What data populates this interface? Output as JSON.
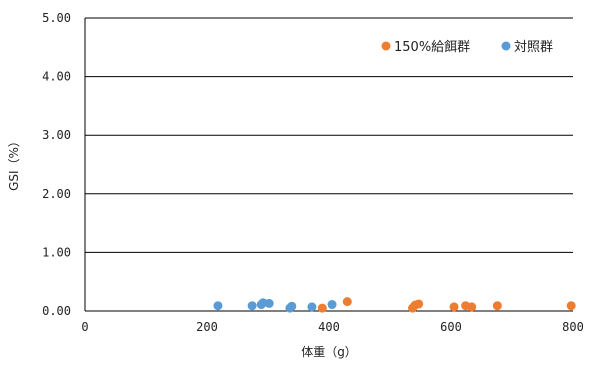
{
  "chart_data": {
    "type": "scatter",
    "title": "",
    "xlabel": "体重（g）",
    "ylabel": "GSI（%）",
    "xlim": [
      0,
      800
    ],
    "ylim": [
      0,
      5
    ],
    "x_ticks": [
      "0",
      "200",
      "400",
      "600",
      "800"
    ],
    "y_ticks": [
      "0.00",
      "1.00",
      "2.00",
      "3.00",
      "4.00",
      "5.00"
    ],
    "grid": "horizontal",
    "legend_position": "top-right",
    "series": [
      {
        "name": "150%給餌群",
        "color": "#ED7D31",
        "points": [
          {
            "x": 389,
            "y": 0.05
          },
          {
            "x": 430,
            "y": 0.16
          },
          {
            "x": 537,
            "y": 0.05
          },
          {
            "x": 541,
            "y": 0.1
          },
          {
            "x": 547,
            "y": 0.12
          },
          {
            "x": 605,
            "y": 0.07
          },
          {
            "x": 624,
            "y": 0.09
          },
          {
            "x": 634,
            "y": 0.07
          },
          {
            "x": 676,
            "y": 0.09
          },
          {
            "x": 797,
            "y": 0.09
          }
        ]
      },
      {
        "name": "対照群",
        "color": "#5B9BD5",
        "points": [
          {
            "x": 218,
            "y": 0.09
          },
          {
            "x": 274,
            "y": 0.09
          },
          {
            "x": 289,
            "y": 0.11
          },
          {
            "x": 292,
            "y": 0.14
          },
          {
            "x": 302,
            "y": 0.13
          },
          {
            "x": 336,
            "y": 0.05
          },
          {
            "x": 339,
            "y": 0.08
          },
          {
            "x": 372,
            "y": 0.07
          },
          {
            "x": 405,
            "y": 0.11
          }
        ]
      }
    ]
  }
}
